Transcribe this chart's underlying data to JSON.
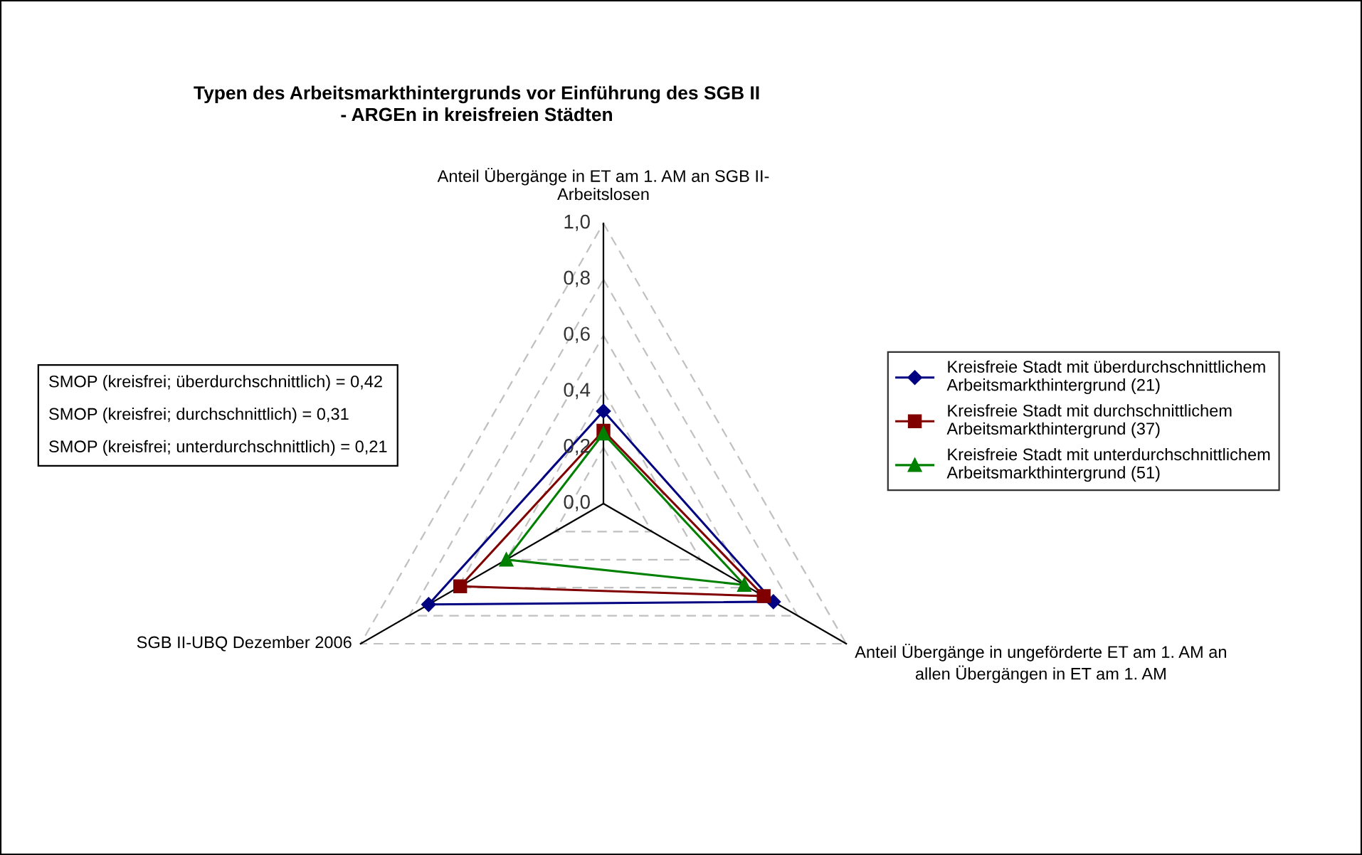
{
  "chart_data": {
    "type": "radar",
    "title": "Typen des Arbeitsmarkthintergrunds vor Einführung des SGB II\n- ARGEn in kreisfreien Städten",
    "categories": [
      "Anteil Übergänge in ET am 1. AM an SGB II-\nArbeitslosen",
      "Anteil Übergänge in ungeförderte ET am 1. AM an\nallen Übergängen in ET am 1. AM",
      "SGB II-UBQ Dezember 2006"
    ],
    "series": [
      {
        "name": "Kreisfreie Stadt mit überdurchschnittlichem\nArbeitsmarkthintergrund (21)",
        "color": "#000080",
        "marker": "diamond",
        "values": [
          0.33,
          0.7,
          0.72
        ]
      },
      {
        "name": "Kreisfreie Stadt mit durchschnittlichem\nArbeitsmarkthintergrund (37)",
        "color": "#800000",
        "marker": "square",
        "values": [
          0.26,
          0.66,
          0.59
        ]
      },
      {
        "name": "Kreisfreie Stadt mit unterdurchschnittlichem\nArbeitsmarkthintergrund (51)",
        "color": "#008000",
        "marker": "triangle",
        "values": [
          0.25,
          0.58,
          0.4
        ]
      }
    ],
    "ylim": [
      0,
      1
    ],
    "yticks": [
      {
        "value": 0,
        "label": "0,0"
      },
      {
        "value": 0.2,
        "label": "0,2"
      },
      {
        "value": 0.4,
        "label": "0,4"
      },
      {
        "value": 0.6,
        "label": "0,6"
      },
      {
        "value": 0.8,
        "label": "0,8"
      },
      {
        "value": 1,
        "label": "1,0"
      }
    ],
    "grid": true,
    "legend": "right",
    "annotations": [
      "SMOP (kreisfrei; überdurchschnittlich) = 0,42",
      "SMOP (kreisfrei; durchschnittlich) = 0,31",
      "SMOP (kreisfrei; unterdurchschnittlich) = 0,21"
    ]
  }
}
